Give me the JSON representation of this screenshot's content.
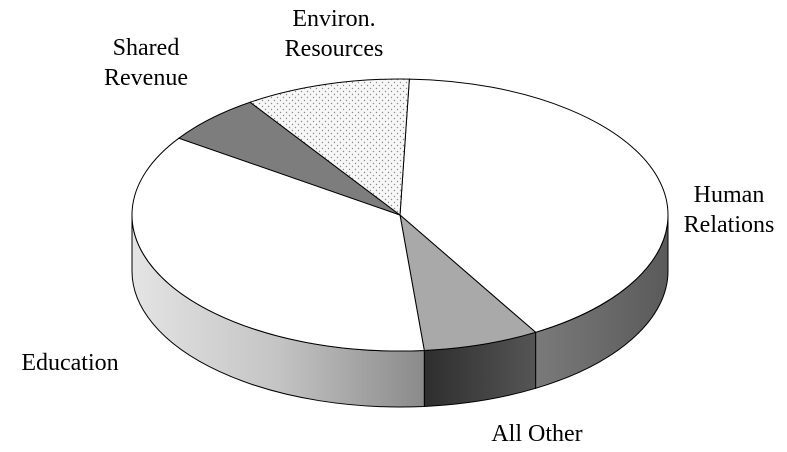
{
  "chart_data": {
    "type": "pie",
    "style": "3d-exploded-none",
    "title": "",
    "slices": [
      {
        "label": "Human Relations",
        "label_lines": [
          "Human",
          "Relations"
        ],
        "value": 41,
        "fill": "#ffffff",
        "side_color": "#6e6e6e",
        "pattern": "none"
      },
      {
        "label": "All Other",
        "label_lines": [
          "All Other"
        ],
        "value": 7,
        "fill": "#a9a9a9",
        "side_color": "#3c3c3c",
        "pattern": "none"
      },
      {
        "label": "Education",
        "label_lines": [
          "Education"
        ],
        "value": 36,
        "fill": "#ffffff",
        "side_color": "#9c9c9c",
        "pattern": "none"
      },
      {
        "label": "Shared Revenue",
        "label_lines": [
          "Shared",
          "Revenue"
        ],
        "value": 6,
        "fill": "#7d7d7d",
        "side_color": "#555555",
        "pattern": "none"
      },
      {
        "label": "Environ. Resources",
        "label_lines": [
          "Environ.",
          "Resources"
        ],
        "value": 10,
        "fill": "#f4f4f4",
        "side_color": "#bbbbbb",
        "pattern": "dots"
      }
    ],
    "start_angle_deg": -88,
    "direction": "clockwise",
    "legend": "none",
    "labels": "outside"
  }
}
